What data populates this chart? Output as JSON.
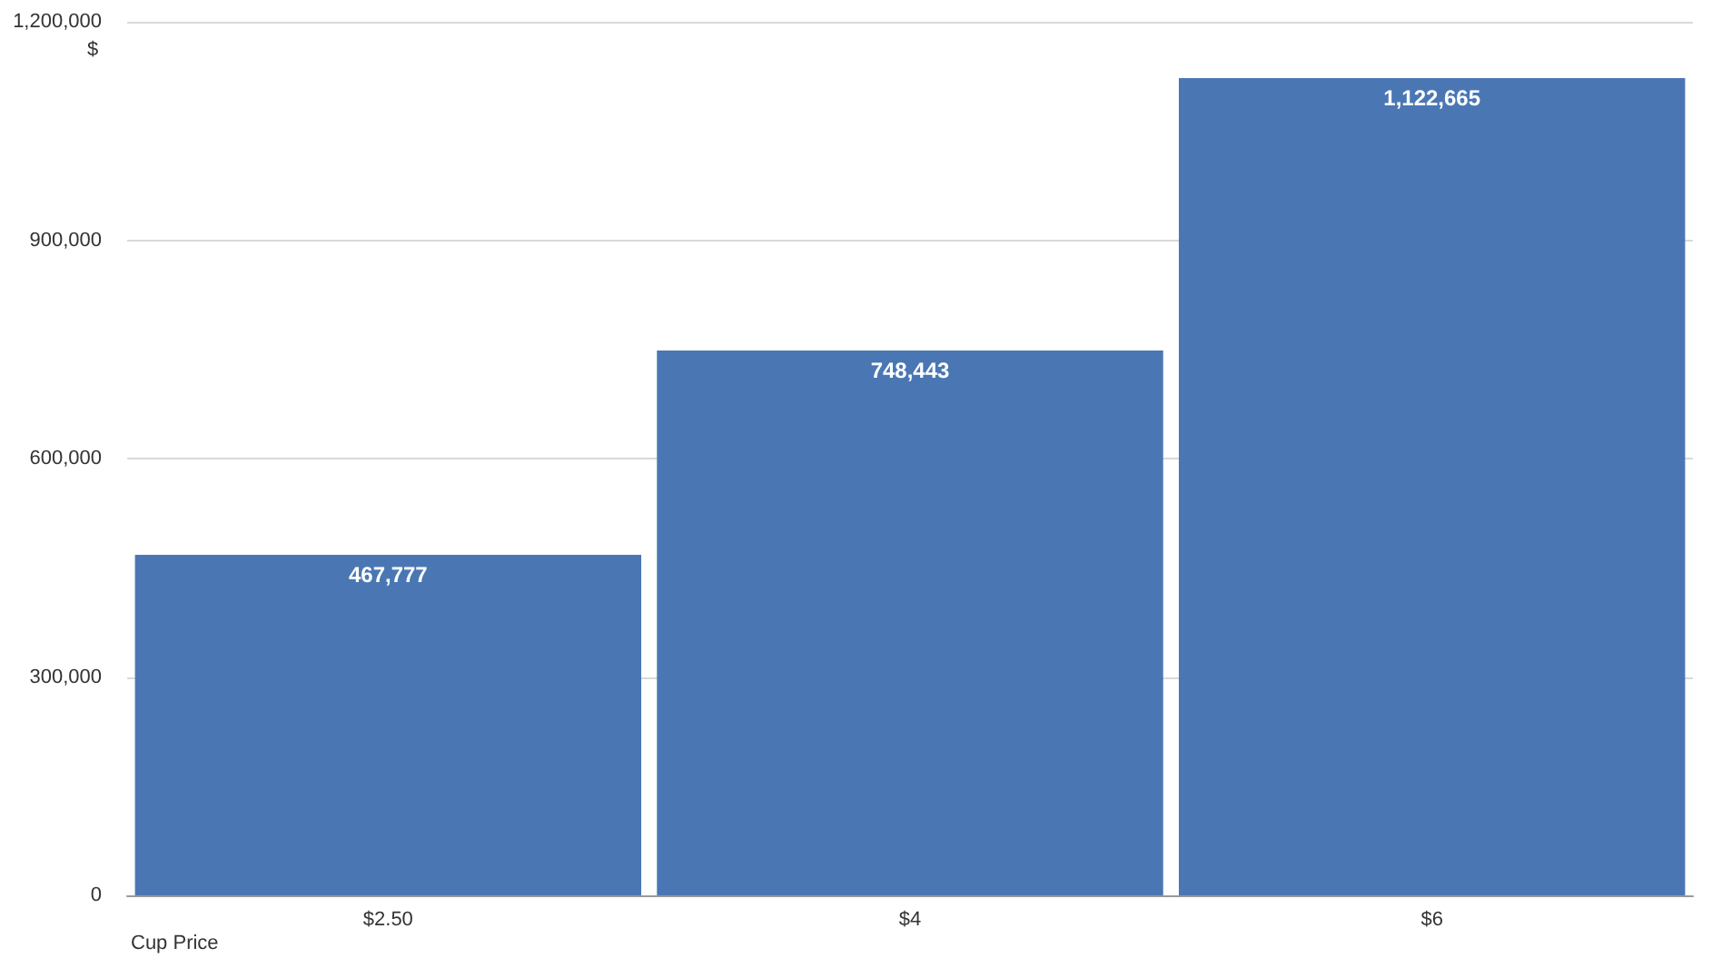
{
  "chart_data": {
    "type": "bar",
    "categories": [
      "$2.50",
      "$4",
      "$6"
    ],
    "values": [
      467777,
      748443,
      1122665
    ],
    "value_labels": [
      "467,777",
      "748,443",
      "1,122,665"
    ],
    "color": "#4a77b4",
    "ylim": [
      0,
      1200000
    ],
    "yticks": [
      {
        "value": 0,
        "label": "0"
      },
      {
        "value": 300000,
        "label": "300,000"
      },
      {
        "value": 600000,
        "label": "600,000"
      },
      {
        "value": 900000,
        "label": "900,000"
      },
      {
        "value": 1200000,
        "label": "1,200,000"
      }
    ],
    "ylabel": "$",
    "xlabel": "Cup Price",
    "grid": "y"
  }
}
